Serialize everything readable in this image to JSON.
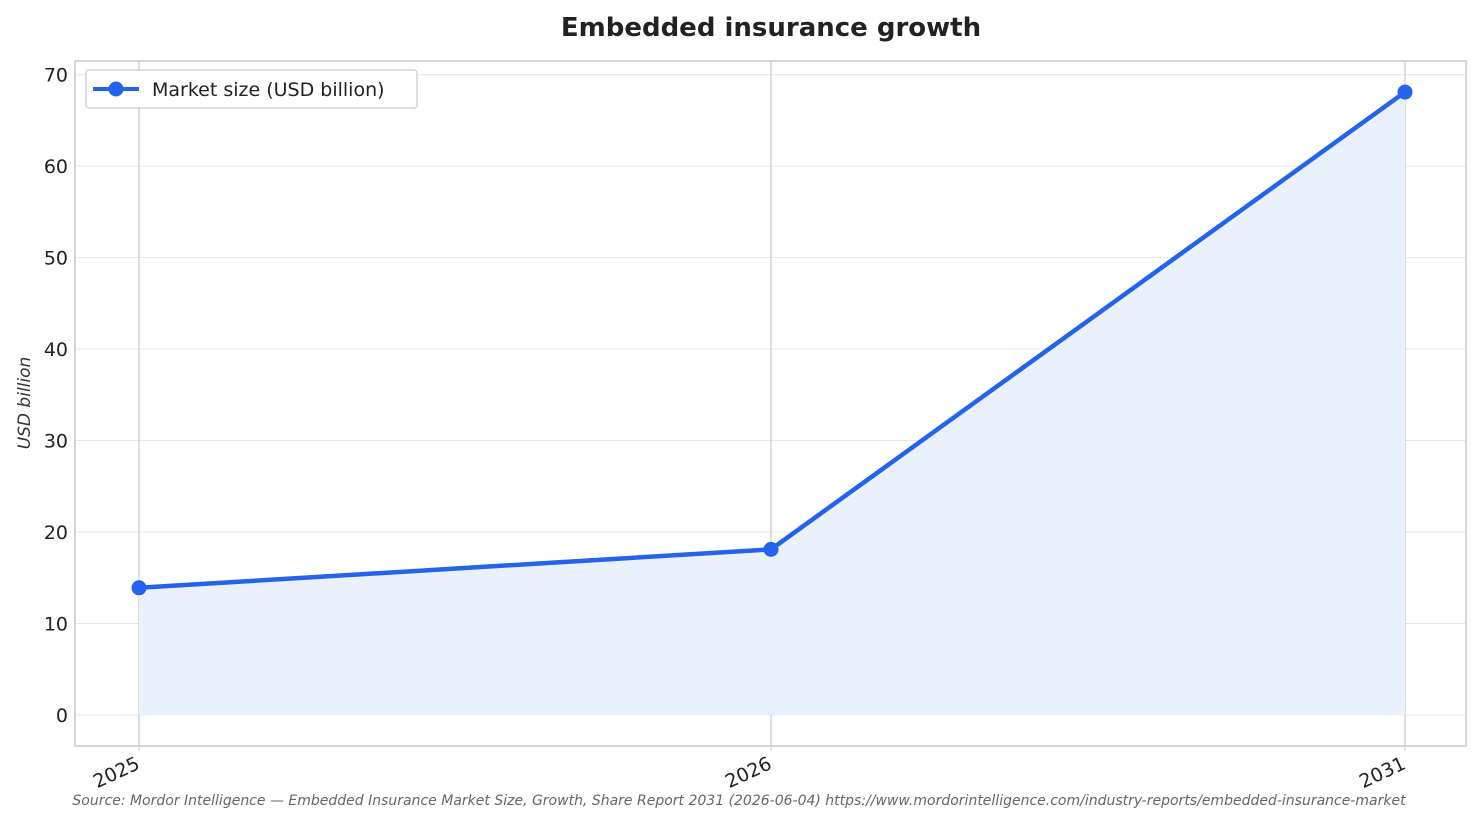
{
  "chart_data": {
    "type": "area",
    "title": "Embedded insurance growth",
    "xlabel": "",
    "ylabel": "USD billion",
    "x": [
      "2025",
      "2026",
      "2031"
    ],
    "series": [
      {
        "name": "Market size (USD billion)",
        "values": [
          13.9,
          18.1,
          68.1
        ]
      }
    ],
    "ylim": [
      -3.4,
      71.5
    ],
    "yticks": [
      0,
      10,
      20,
      30,
      40,
      50,
      60,
      70
    ],
    "grid": true,
    "legend": "top-left",
    "colors": {
      "line": "#2563eb",
      "fill": "#eaf0fc",
      "grid": "#e6e6e6",
      "vline": "#c8c8cc",
      "axis": "#c8c8c8"
    }
  },
  "source": "Source: Mordor Intelligence — Embedded Insurance Market Size, Growth, Share Report 2031 (2026-06-04) https://www.mordorintelligence.com/industry-reports/embedded-insurance-market"
}
